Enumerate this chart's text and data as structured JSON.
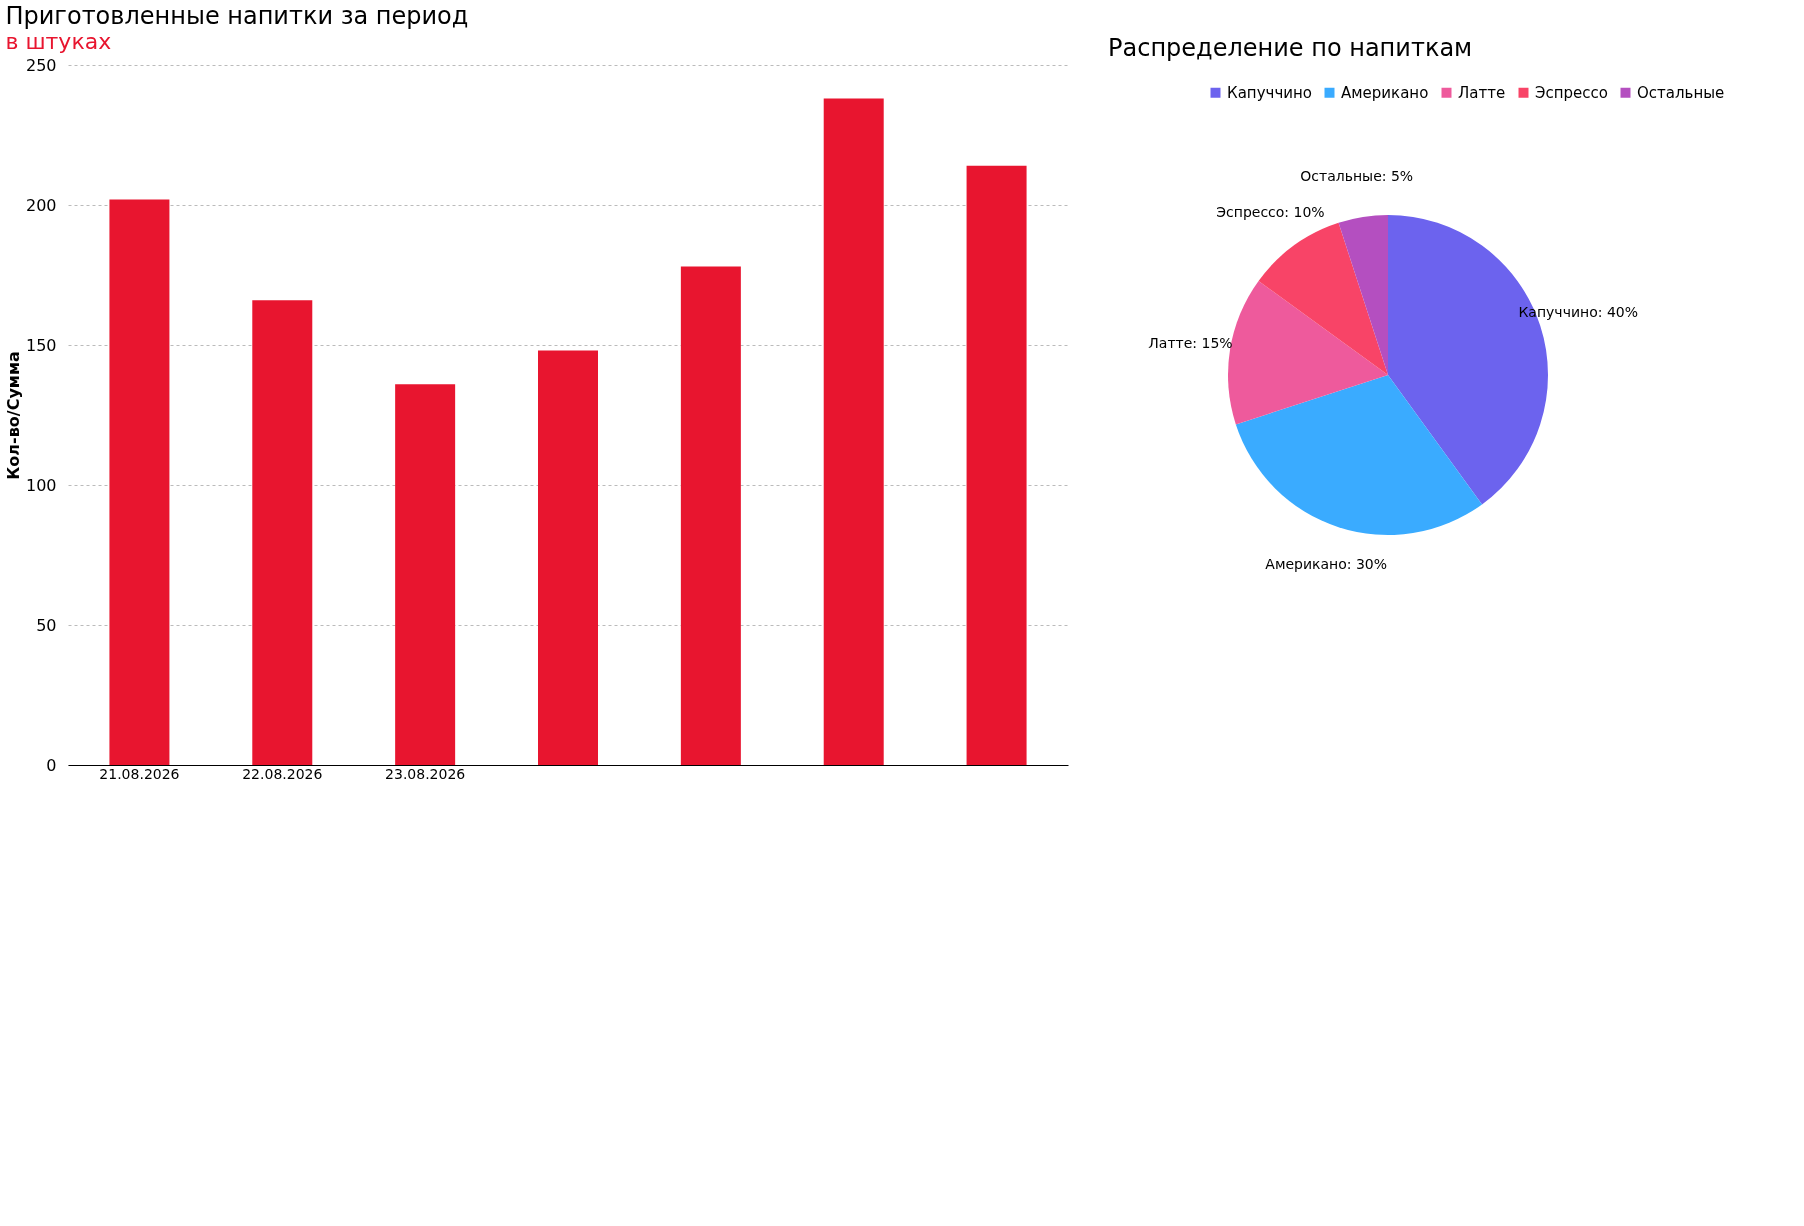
{
  "chart_data": [
    {
      "type": "bar",
      "title": "Приготовленные напитки за период",
      "subtitle": "в штуках",
      "ylabel": "Кол-во/Сумма",
      "categories": [
        "21.08.2026",
        "22.08.2026",
        "23.08.2026",
        null,
        null,
        null,
        null
      ],
      "values": [
        202,
        166,
        136,
        148,
        178,
        238,
        214
      ],
      "color": "#e8152f",
      "ylim": [
        0,
        250
      ],
      "yticks": [
        0,
        50,
        100,
        150,
        200,
        250
      ],
      "grid": "y"
    },
    {
      "type": "pie",
      "title": "Распределение по напиткам",
      "categories": [
        "Капуччино",
        "Американо",
        "Латте",
        "Эспрессо",
        "Остальные"
      ],
      "values": [
        40,
        30,
        15,
        10,
        5
      ],
      "value_labels": [
        "Капуччино: 40%",
        "Американо: 30%",
        "Латте: 15%",
        "Эспрессо: 10%",
        "Остальные: 5%"
      ],
      "colors": [
        "#6c63ee",
        "#3aabff",
        "#ee5a9c",
        "#f84467",
        "#b44fc0"
      ],
      "legend": "top"
    }
  ]
}
